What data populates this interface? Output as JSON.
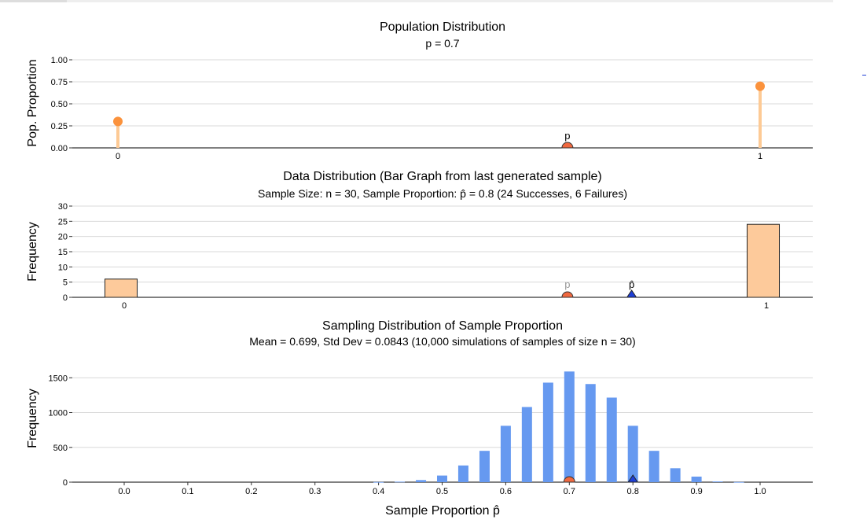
{
  "chart_data": [
    {
      "type": "bar",
      "title": "Population Distribution",
      "subtitle": "p = 0.7",
      "ylabel": "Pop. Proportion",
      "categories": [
        "0",
        "1"
      ],
      "x": [
        0,
        1
      ],
      "values": [
        0.3,
        0.7
      ],
      "ylim": [
        0,
        1
      ],
      "yticks": [
        "0.00",
        "0.25",
        "0.50",
        "0.75",
        "1.00"
      ],
      "marker": {
        "label": "p",
        "x": 0.7
      },
      "colors": {
        "stem": "#fdca95",
        "point": "#fb923c",
        "marker": "#f0683f"
      }
    },
    {
      "type": "bar",
      "title": "Data Distribution (Bar Graph from last generated sample)",
      "subtitle": "Sample Size: n = 30, Sample Proportion: p̂ = 0.8  (24 Successes, 6 Failures)",
      "ylabel": "Frequency",
      "categories": [
        "0",
        "1"
      ],
      "x": [
        0,
        1
      ],
      "values": [
        6,
        24
      ],
      "ylim": [
        0,
        30
      ],
      "yticks": [
        "0",
        "5",
        "10",
        "15",
        "20",
        "25",
        "30"
      ],
      "p_marker": {
        "label": "p",
        "x": 0.7
      },
      "phat_marker": {
        "label": "p̂",
        "x": 0.8
      },
      "colors": {
        "bar": "#fdca9b",
        "p": "#f0683f",
        "phat": "#1f3fd6"
      }
    },
    {
      "type": "bar",
      "title": "Sampling Distribution of Sample Proportion",
      "subtitle": "Mean = 0.699, Std Dev = 0.0843 (10,000 simulations of samples of size n = 30)",
      "ylabel": "Frequency",
      "xlabel": "Sample Proportion p̂",
      "x": [
        0.4,
        0.4333,
        0.4667,
        0.5,
        0.5333,
        0.5667,
        0.6,
        0.6333,
        0.6667,
        0.7,
        0.7333,
        0.7667,
        0.8,
        0.8333,
        0.8667,
        0.9,
        0.9333,
        0.9667
      ],
      "values": [
        2,
        7,
        30,
        95,
        240,
        450,
        810,
        1080,
        1430,
        1590,
        1410,
        1215,
        810,
        450,
        200,
        80,
        10,
        2
      ],
      "xlim": [
        -0.08,
        1.08
      ],
      "ylim": [
        0,
        1650
      ],
      "xticks": [
        "0.0",
        "0.1",
        "0.2",
        "0.3",
        "0.4",
        "0.5",
        "0.6",
        "0.7",
        "0.8",
        "0.9",
        "1.0"
      ],
      "yticks": [
        "0",
        "500",
        "1000",
        "1500"
      ],
      "p_marker": {
        "x": 0.7
      },
      "phat_marker": {
        "x": 0.8
      },
      "colors": {
        "bar": "#6699f0",
        "p": "#f0683f",
        "phat": "#1f3fd6"
      }
    }
  ]
}
